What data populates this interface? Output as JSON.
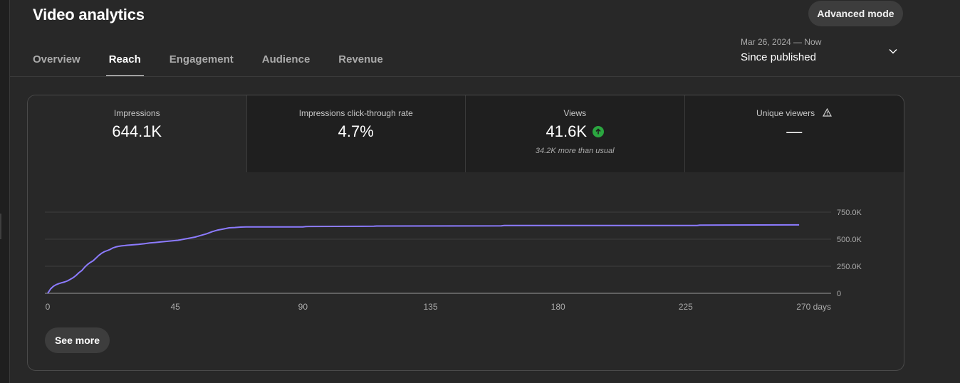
{
  "page": {
    "title": "Video analytics"
  },
  "header": {
    "advanced_mode_label": "Advanced mode"
  },
  "tabs": [
    {
      "label": "Overview",
      "active": false
    },
    {
      "label": "Reach",
      "active": true
    },
    {
      "label": "Engagement",
      "active": false
    },
    {
      "label": "Audience",
      "active": false
    },
    {
      "label": "Revenue",
      "active": false
    }
  ],
  "date_range": {
    "range": "Mar 26, 2024 — Now",
    "label": "Since published",
    "icon": "chevron-down-icon"
  },
  "metrics": [
    {
      "label": "Impressions",
      "value": "644.1K"
    },
    {
      "label": "Impressions click-through rate",
      "value": "4.7%"
    },
    {
      "label": "Views",
      "value": "41.6K",
      "trend_icon": "arrow-up-icon",
      "note": "34.2K more than usual"
    },
    {
      "label": "Unique viewers",
      "value": "—",
      "icon": "warning-icon"
    }
  ],
  "colors": {
    "line": "#8c7bff",
    "trend_up": "#2ba640",
    "background": "#282828"
  },
  "chart_data": {
    "type": "line",
    "title": "",
    "xlabel": "",
    "ylabel": "",
    "x_ticks": [
      "0",
      "45",
      "90",
      "135",
      "180",
      "225",
      "270 days"
    ],
    "y_ticks": [
      "750.0K",
      "500.0K",
      "250.0K",
      "0"
    ],
    "xlim": [
      0,
      270
    ],
    "ylim": [
      0,
      750000
    ],
    "series": [
      {
        "x": [
          0,
          1,
          2,
          3,
          4,
          5,
          6,
          7,
          8,
          9,
          10,
          11,
          12,
          13,
          14,
          15,
          16,
          17,
          18,
          19,
          20,
          21,
          22,
          23,
          24,
          25,
          26,
          27,
          28,
          30,
          32,
          34,
          36,
          38,
          40,
          42,
          44,
          46,
          48,
          50,
          52,
          54,
          56,
          58,
          60,
          62,
          64,
          66,
          68,
          70,
          90,
          91,
          92,
          115,
          116,
          160,
          161,
          229,
          230,
          265
        ],
        "y": [
          0,
          40000,
          65000,
          80000,
          90000,
          98000,
          105000,
          115000,
          130000,
          145000,
          165000,
          190000,
          210000,
          240000,
          265000,
          285000,
          300000,
          325000,
          350000,
          370000,
          385000,
          395000,
          405000,
          420000,
          428000,
          434000,
          438000,
          441000,
          444000,
          448000,
          452000,
          458000,
          465000,
          470000,
          475000,
          480000,
          485000,
          490000,
          500000,
          510000,
          520000,
          535000,
          550000,
          570000,
          585000,
          595000,
          605000,
          608000,
          612000,
          613000,
          614000,
          617000,
          618000,
          620000,
          622000,
          623000,
          626000,
          627000,
          630000,
          632000
        ]
      }
    ],
    "grid": true,
    "legend": "none"
  },
  "actions": {
    "see_more_label": "See more"
  }
}
